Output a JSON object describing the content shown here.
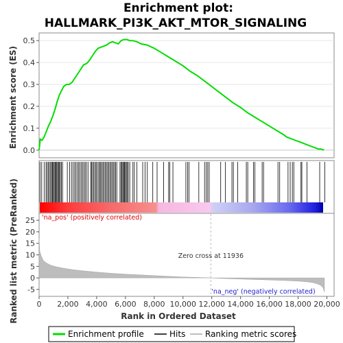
{
  "chart_data": {
    "type": "line",
    "title_lines": [
      "Enrichment plot:",
      "HALLMARK_PI3K_AKT_MTOR_SIGNALING"
    ],
    "xlabel": "Rank in Ordered Dataset",
    "xlim": [
      0,
      20500
    ],
    "x_ticks": [
      0,
      2000,
      4000,
      6000,
      8000,
      10000,
      12000,
      14000,
      16000,
      18000,
      20000
    ],
    "x_tick_labels": [
      "0",
      "2,000",
      "4,000",
      "6,000",
      "8,000",
      "10,000",
      "12,000",
      "14,000",
      "16,000",
      "18,000",
      "20,000"
    ],
    "es_panel": {
      "ylabel": "Enrichment score (ES)",
      "ylim": [
        -0.035,
        0.535
      ],
      "y_ticks": [
        0.0,
        0.1,
        0.2,
        0.3,
        0.4,
        0.5
      ],
      "y_tick_labels": [
        "0.0",
        "0.1",
        "0.2",
        "0.3",
        "0.4",
        "0.5"
      ],
      "series_color": "#00dd00",
      "x": [
        0,
        80,
        200,
        350,
        500,
        650,
        800,
        950,
        1100,
        1250,
        1400,
        1550,
        1700,
        1900,
        2100,
        2300,
        2500,
        2700,
        2900,
        3100,
        3300,
        3500,
        3700,
        3900,
        4100,
        4300,
        4500,
        4700,
        4900,
        5100,
        5300,
        5500,
        5700,
        5900,
        6100,
        6300,
        6500,
        6800,
        7100,
        7500,
        8000,
        8500,
        9000,
        9500,
        10000,
        10500,
        11000,
        11500,
        12000,
        12500,
        13000,
        13500,
        14000,
        14500,
        15000,
        15500,
        16000,
        16500,
        17000,
        17200,
        17400,
        17600,
        17800,
        18000,
        18200,
        18400,
        18600,
        18800,
        19000,
        19200,
        19400,
        19600,
        19800
      ],
      "y": [
        0.0,
        0.05,
        0.045,
        0.06,
        0.085,
        0.11,
        0.13,
        0.155,
        0.185,
        0.22,
        0.25,
        0.27,
        0.29,
        0.3,
        0.3,
        0.31,
        0.33,
        0.35,
        0.37,
        0.39,
        0.395,
        0.41,
        0.43,
        0.45,
        0.465,
        0.47,
        0.475,
        0.48,
        0.49,
        0.495,
        0.49,
        0.485,
        0.5,
        0.505,
        0.505,
        0.5,
        0.5,
        0.495,
        0.485,
        0.48,
        0.465,
        0.445,
        0.425,
        0.405,
        0.385,
        0.36,
        0.34,
        0.315,
        0.29,
        0.265,
        0.24,
        0.215,
        0.195,
        0.17,
        0.15,
        0.13,
        0.11,
        0.09,
        0.07,
        0.06,
        0.055,
        0.05,
        0.045,
        0.04,
        0.035,
        0.03,
        0.025,
        0.02,
        0.015,
        0.01,
        0.005,
        0.005,
        0.0
      ]
    },
    "hits": [
      60,
      180,
      350,
      480,
      560,
      640,
      720,
      800,
      870,
      930,
      990,
      1050,
      1110,
      1170,
      1230,
      1290,
      1350,
      1410,
      1480,
      1550,
      1630,
      1960,
      2120,
      2250,
      2360,
      2470,
      2560,
      2660,
      2750,
      2840,
      2930,
      3020,
      3110,
      3200,
      3290,
      3400,
      3580,
      3650,
      3720,
      3800,
      3880,
      3960,
      4040,
      4140,
      4210,
      4280,
      4360,
      4440,
      4520,
      4600,
      4680,
      4760,
      4840,
      4920,
      5000,
      5080,
      5160,
      5240,
      5320,
      5400,
      5620,
      5700,
      5760,
      5820,
      5880,
      5940,
      6000,
      6060,
      6130,
      6200,
      6300,
      6520,
      6620,
      6800,
      7200,
      7360,
      7520,
      7900,
      8200,
      8650,
      9000,
      9080,
      9300,
      10200,
      10320,
      10420,
      11100,
      11500,
      11620,
      11720,
      11820,
      12620,
      12950,
      13400,
      13500,
      13800,
      14400,
      14500,
      14900,
      15000,
      15500,
      15600,
      16600,
      16720,
      17300,
      17450,
      17600,
      17700,
      18200,
      18260,
      18620,
      19500,
      19850
    ],
    "ranking_panel": {
      "ylabel": "Ranked list metric (PreRanked)",
      "ylim": [
        -8,
        28
      ],
      "y_ticks": [
        -5,
        0,
        5,
        10,
        15,
        20,
        25
      ],
      "y_tick_labels": [
        "-5",
        "0",
        "5",
        "10",
        "15",
        "20",
        "25"
      ],
      "x": [
        0,
        50,
        150,
        300,
        500,
        800,
        1200,
        1700,
        2300,
        3000,
        4000,
        5000,
        6000,
        7000,
        8000,
        9000,
        10000,
        11000,
        11936,
        13000,
        14000,
        15000,
        16000,
        17000,
        18000,
        18600,
        19000,
        19300,
        19500,
        19650,
        19750,
        19830
      ],
      "y": [
        17,
        11.5,
        9.5,
        7.5,
        6.5,
        5.5,
        4.8,
        4.2,
        3.6,
        3.1,
        2.5,
        2.0,
        1.6,
        1.3,
        1.0,
        0.7,
        0.4,
        0.2,
        0.0,
        -0.3,
        -0.5,
        -0.7,
        -0.9,
        -1.1,
        -1.4,
        -1.7,
        -2.0,
        -2.5,
        -3.0,
        -3.6,
        -4.5,
        -6.2
      ],
      "zero_cross_label": "Zero cross at 11936",
      "pos_label": "'na_pos' (positively correlated)",
      "neg_label": "'na_neg' (negatively correlated)"
    },
    "legend": [
      "Enrichment profile",
      "Hits",
      "Ranking metric scores"
    ]
  }
}
